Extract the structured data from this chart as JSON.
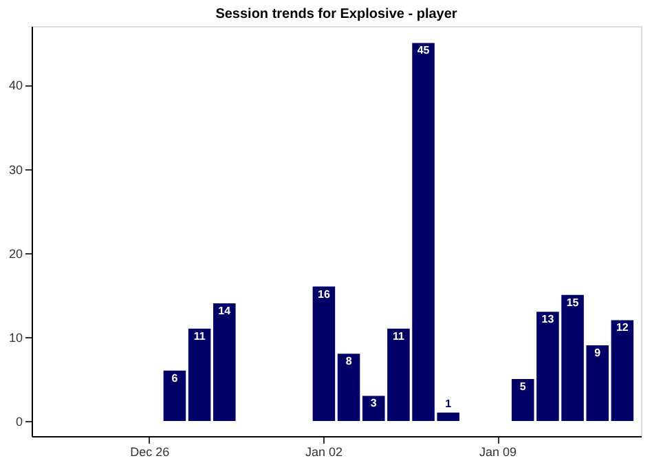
{
  "chart_data": {
    "type": "bar",
    "title": "Session trends for Explosive - player",
    "categories": [
      null,
      null,
      null,
      null,
      "Dec 26",
      null,
      null,
      null,
      null,
      null,
      null,
      "Jan 02",
      null,
      null,
      null,
      null,
      null,
      null,
      "Jan 09",
      null,
      null,
      null,
      null,
      null
    ],
    "values": [
      null,
      null,
      null,
      null,
      null,
      6,
      11,
      14,
      null,
      null,
      null,
      16,
      8,
      3,
      11,
      45,
      1,
      null,
      null,
      5,
      13,
      15,
      9,
      12
    ],
    "color": "#000066",
    "data_labels": true,
    "ylim": [
      -1.8,
      47
    ],
    "yticks": [
      0,
      10,
      20,
      30,
      40
    ],
    "grid": false
  }
}
